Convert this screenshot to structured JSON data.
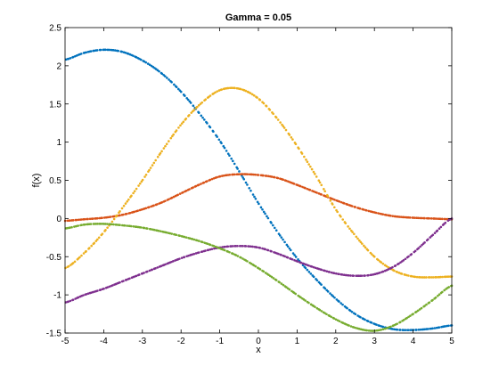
{
  "chart_data": {
    "type": "scatter",
    "title": "Gamma = 0.05",
    "xlabel": "x",
    "ylabel": "f(x)",
    "xlim": [
      -5,
      5
    ],
    "ylim": [
      -1.5,
      2.5
    ],
    "grid": false,
    "legend": "none",
    "x_ticks": [
      "-5",
      "-4",
      "-3",
      "-2",
      "-1",
      "0",
      "1",
      "2",
      "3",
      "4",
      "5"
    ],
    "y_ticks": [
      "-1.5",
      "-1",
      "-0.5",
      "0",
      "0.5",
      "1",
      "1.5",
      "2",
      "2.5"
    ],
    "x": [
      -5,
      -4.5,
      -4,
      -3.5,
      -3,
      -2.5,
      -2,
      -1.5,
      -1,
      -0.5,
      0,
      0.5,
      1,
      1.5,
      2,
      2.5,
      3,
      3.5,
      4,
      4.5,
      5
    ],
    "series": [
      {
        "color": "#0072BD",
        "values": [
          2.08,
          2.17,
          2.21,
          2.18,
          2.07,
          1.9,
          1.66,
          1.36,
          1.02,
          0.62,
          0.2,
          -0.18,
          -0.52,
          -0.8,
          -1.05,
          -1.25,
          -1.38,
          -1.45,
          -1.46,
          -1.44,
          -1.4
        ]
      },
      {
        "color": "#D95319",
        "values": [
          -0.03,
          -0.01,
          0.01,
          0.05,
          0.12,
          0.21,
          0.33,
          0.45,
          0.55,
          0.58,
          0.57,
          0.53,
          0.44,
          0.34,
          0.24,
          0.15,
          0.08,
          0.03,
          0.01,
          0,
          -0.01
        ]
      },
      {
        "color": "#EDB120",
        "values": [
          -0.65,
          -0.45,
          -0.18,
          0.15,
          0.5,
          0.88,
          1.23,
          1.5,
          1.68,
          1.7,
          1.57,
          1.3,
          0.95,
          0.55,
          0.12,
          -0.22,
          -0.5,
          -0.68,
          -0.76,
          -0.77,
          -0.76
        ]
      },
      {
        "color": "#7E2F8E",
        "values": [
          -1.1,
          -1.0,
          -0.92,
          -0.82,
          -0.72,
          -0.62,
          -0.52,
          -0.44,
          -0.38,
          -0.36,
          -0.38,
          -0.46,
          -0.56,
          -0.65,
          -0.72,
          -0.75,
          -0.73,
          -0.63,
          -0.45,
          -0.22,
          0.0
        ]
      },
      {
        "color": "#77AC30",
        "values": [
          -0.13,
          -0.08,
          -0.07,
          -0.09,
          -0.12,
          -0.17,
          -0.23,
          -0.3,
          -0.39,
          -0.5,
          -0.65,
          -0.82,
          -1.0,
          -1.17,
          -1.32,
          -1.43,
          -1.47,
          -1.4,
          -1.25,
          -1.07,
          -0.88
        ]
      }
    ]
  }
}
